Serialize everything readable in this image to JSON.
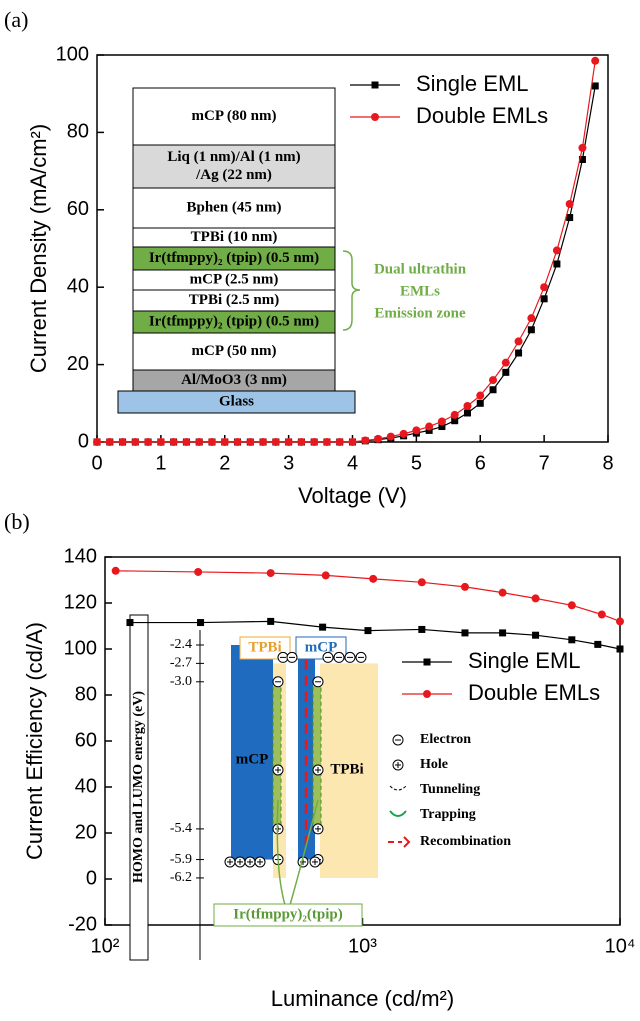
{
  "chart_data": [
    {
      "type": "line",
      "panel_label": "(a)",
      "x_label": "Voltage (V)",
      "y_label": "Current Density (mA/cm²)",
      "x": [
        0,
        0.2,
        0.4,
        0.6,
        0.8,
        1.0,
        1.2,
        1.4,
        1.6,
        1.8,
        2.0,
        2.2,
        2.4,
        2.6,
        2.8,
        3.0,
        3.2,
        3.4,
        3.6,
        3.8,
        4.0,
        4.2,
        4.4,
        4.6,
        4.8,
        5.0,
        5.2,
        5.4,
        5.6,
        5.8,
        6.0,
        6.2,
        6.4,
        6.6,
        6.8,
        7.0,
        7.2,
        7.4,
        7.6,
        7.8
      ],
      "series": [
        {
          "name": "Single EML",
          "color": "#000000",
          "marker": "square",
          "values": [
            0,
            0,
            0,
            0,
            0,
            0,
            0,
            0,
            0,
            0,
            0,
            0,
            0,
            0,
            0,
            0,
            0,
            0,
            0,
            0,
            0,
            0.3,
            0.6,
            1.0,
            1.6,
            2.3,
            3.0,
            4.0,
            5.5,
            7.5,
            10,
            13.5,
            18,
            23,
            29,
            37,
            46,
            58,
            73,
            92
          ]
        },
        {
          "name": "Double EMLs",
          "color": "#e8191e",
          "marker": "circle",
          "values": [
            0,
            0,
            0,
            0,
            0,
            0,
            0,
            0,
            0,
            0,
            0,
            0,
            0,
            0,
            0,
            0,
            0,
            0,
            0,
            0,
            0,
            0.4,
            0.8,
            1.4,
            2.1,
            3.0,
            4.0,
            5.3,
            7.0,
            9.3,
            12,
            16,
            20.5,
            26,
            32,
            40,
            49.5,
            61.5,
            76,
            98.5
          ]
        }
      ],
      "xlim": [
        0,
        8
      ],
      "xticks": [
        0,
        1,
        2,
        3,
        4,
        5,
        6,
        7,
        8
      ],
      "ylim": [
        0,
        100
      ],
      "yticks": [
        0,
        20,
        40,
        60,
        80,
        100
      ],
      "legend": "upper right",
      "inset": {
        "layers": [
          {
            "label": [
              "mCP (80 nm)"
            ],
            "color": "#ffffff"
          },
          {
            "label": [
              "Liq (1 nm)/Al (1 nm)",
              "/Ag (22 nm)"
            ],
            "color": "#d9d9d9"
          },
          {
            "label": [
              "Bphen (45 nm)"
            ],
            "color": "#ffffff"
          },
          {
            "label": [
              "TPBi (10 nm)"
            ],
            "color": "#ffffff"
          },
          {
            "label": [
              "Ir(tfmppy)₂ (tpip) (0.5 nm)"
            ],
            "color": "#70ad47"
          },
          {
            "label": [
              "mCP (2.5 nm)"
            ],
            "color": "#ffffff"
          },
          {
            "label": [
              "TPBi (2.5 nm)"
            ],
            "color": "#ffffff"
          },
          {
            "label": [
              "Ir(tfmppy)₂ (tpip) (0.5 nm)"
            ],
            "color": "#70ad47"
          },
          {
            "label": [
              "mCP (50 nm)"
            ],
            "color": "#ffffff"
          },
          {
            "label": [
              "Al/MoO3 (3 nm)"
            ],
            "color": "#a6a6a6"
          },
          {
            "label": [
              "Glass"
            ],
            "color": "#9dc3e6"
          }
        ],
        "bracket_label": [
          "Dual ultrathin",
          "EMLs",
          "Emission zone"
        ],
        "bracket_color": "#70ad47"
      }
    },
    {
      "type": "line",
      "panel_label": "(b)",
      "x_label": "Luminance (cd/m²)",
      "y_label": "Current Efficiency (cd/A)",
      "x_scale": "log",
      "series": [
        {
          "name": "Single EML",
          "color": "#000000",
          "marker": "square",
          "x": [
            125,
            235,
            440,
            700,
            1050,
            1700,
            2500,
            3500,
            4700,
            6500,
            8200,
            10000
          ],
          "values": [
            111.5,
            111.5,
            112,
            109.5,
            108,
            108.5,
            107,
            107,
            106,
            104,
            102,
            100
          ]
        },
        {
          "name": "Double EMLs",
          "color": "#e8191e",
          "marker": "circle",
          "x": [
            110,
            230,
            440,
            720,
            1100,
            1700,
            2500,
            3500,
            4700,
            6500,
            8500,
            10000
          ],
          "values": [
            134,
            133.5,
            133,
            132,
            130.5,
            129,
            127,
            124.5,
            122,
            119,
            115,
            112
          ]
        }
      ],
      "xlim": [
        100,
        10000
      ],
      "xticks": [
        {
          "value": 100,
          "label": "10²"
        },
        {
          "value": 1000,
          "label": "10³"
        },
        {
          "value": 10000,
          "label": "10⁴"
        }
      ],
      "ylim": [
        -20,
        140
      ],
      "yticks": [
        -20,
        0,
        20,
        40,
        60,
        80,
        100,
        120,
        140
      ],
      "legend": "center right",
      "inset": {
        "axis_label": "HOMO and LUMO energy (eV)",
        "levels": [
          -2.4,
          -2.7,
          {
            "value": -3.0,
            "label": "-3.0"
          },
          -5.4,
          -5.9,
          -6.2
        ],
        "box_labels": [
          "TPBi",
          "mCP",
          "mCP",
          "TPBi"
        ],
        "legend_items": [
          "Electron",
          "Hole",
          "Tunneling",
          "Trapping",
          "Recombination"
        ],
        "dopant_label": "Ir(tfmppy)₂(tpip)"
      }
    }
  ]
}
